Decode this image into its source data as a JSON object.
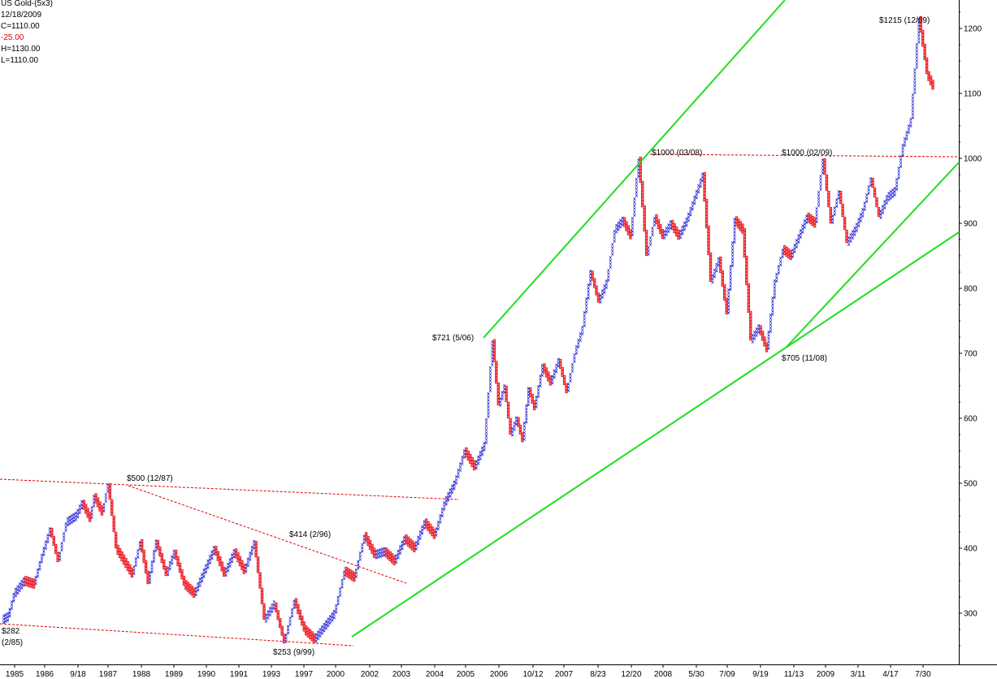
{
  "header": {
    "title": "US Gold-(5x3)",
    "date": "12/18/2009",
    "close": "C=1110.00",
    "change": "-25.00",
    "high": "H=1130.00",
    "low": "L=1110.00"
  },
  "colors": {
    "x": "#2a2ad8",
    "o": "#e8202a",
    "trend": "#22dd22",
    "dotted": "#e00000",
    "background": "#ffffff"
  },
  "chart_data": {
    "type": "point-and-figure",
    "box_size": 5,
    "reversal": 3,
    "ylim": [
      235,
      1240
    ],
    "y_ticks": [
      300,
      400,
      500,
      600,
      700,
      800,
      900,
      1000,
      1100,
      1200
    ],
    "x_labels": [
      "1985",
      "1986",
      "9/18",
      "1987",
      "1988",
      "1989",
      "1990",
      "1991",
      "1993",
      "1997",
      "2000",
      "2002",
      "2003",
      "2004",
      "2005",
      "2006",
      "10/12",
      "2007",
      "8/23",
      "12/20",
      "2008",
      "5/30",
      "7/09",
      "9/19",
      "11/13",
      "2009",
      "3/11",
      "4/17",
      "7/30"
    ],
    "anchors": [
      [
        0,
        290
      ],
      [
        3,
        295
      ],
      [
        6,
        330
      ],
      [
        11,
        350
      ],
      [
        16,
        345
      ],
      [
        20,
        390
      ],
      [
        24,
        430
      ],
      [
        28,
        380
      ],
      [
        32,
        440
      ],
      [
        37,
        450
      ],
      [
        40,
        470
      ],
      [
        44,
        445
      ],
      [
        46,
        480
      ],
      [
        50,
        455
      ],
      [
        53,
        500
      ],
      [
        57,
        400
      ],
      [
        61,
        380
      ],
      [
        65,
        360
      ],
      [
        69,
        410
      ],
      [
        73,
        345
      ],
      [
        77,
        410
      ],
      [
        82,
        360
      ],
      [
        86,
        395
      ],
      [
        91,
        345
      ],
      [
        96,
        330
      ],
      [
        101,
        365
      ],
      [
        106,
        400
      ],
      [
        111,
        360
      ],
      [
        116,
        395
      ],
      [
        121,
        365
      ],
      [
        126,
        410
      ],
      [
        131,
        290
      ],
      [
        136,
        315
      ],
      [
        141,
        255
      ],
      [
        146,
        320
      ],
      [
        151,
        275
      ],
      [
        156,
        260
      ],
      [
        161,
        280
      ],
      [
        166,
        300
      ],
      [
        171,
        365
      ],
      [
        176,
        355
      ],
      [
        181,
        420
      ],
      [
        186,
        390
      ],
      [
        191,
        395
      ],
      [
        196,
        380
      ],
      [
        201,
        415
      ],
      [
        206,
        400
      ],
      [
        211,
        440
      ],
      [
        216,
        420
      ],
      [
        221,
        470
      ],
      [
        226,
        500
      ],
      [
        231,
        550
      ],
      [
        236,
        525
      ],
      [
        241,
        560
      ],
      [
        245,
        720
      ],
      [
        248,
        620
      ],
      [
        251,
        650
      ],
      [
        254,
        575
      ],
      [
        257,
        600
      ],
      [
        260,
        565
      ],
      [
        263,
        645
      ],
      [
        266,
        615
      ],
      [
        270,
        680
      ],
      [
        274,
        655
      ],
      [
        278,
        690
      ],
      [
        282,
        640
      ],
      [
        286,
        700
      ],
      [
        290,
        740
      ],
      [
        294,
        825
      ],
      [
        298,
        780
      ],
      [
        302,
        810
      ],
      [
        306,
        890
      ],
      [
        310,
        905
      ],
      [
        314,
        880
      ],
      [
        318,
        1000
      ],
      [
        322,
        850
      ],
      [
        326,
        910
      ],
      [
        330,
        880
      ],
      [
        334,
        900
      ],
      [
        338,
        880
      ],
      [
        342,
        905
      ],
      [
        346,
        940
      ],
      [
        350,
        975
      ],
      [
        354,
        810
      ],
      [
        358,
        845
      ],
      [
        362,
        760
      ],
      [
        366,
        905
      ],
      [
        370,
        890
      ],
      [
        374,
        720
      ],
      [
        378,
        740
      ],
      [
        382,
        705
      ],
      [
        386,
        810
      ],
      [
        390,
        860
      ],
      [
        394,
        850
      ],
      [
        398,
        880
      ],
      [
        402,
        910
      ],
      [
        406,
        900
      ],
      [
        410,
        1000
      ],
      [
        414,
        900
      ],
      [
        418,
        950
      ],
      [
        422,
        870
      ],
      [
        426,
        890
      ],
      [
        430,
        920
      ],
      [
        434,
        970
      ],
      [
        438,
        910
      ],
      [
        442,
        940
      ],
      [
        446,
        950
      ],
      [
        450,
        1020
      ],
      [
        454,
        1060
      ],
      [
        458,
        1215
      ],
      [
        462,
        1130
      ],
      [
        465,
        1110
      ]
    ],
    "annotations": [
      "$500  (12/87)",
      "$414  (2/96)",
      "$721  (5/06)",
      "$1000 (03/08)",
      "$1000 (02/09)",
      "$1215 (12/09)",
      "$705 (11/08)",
      "$282",
      "(2/85)",
      "$253 (9/99)"
    ]
  }
}
